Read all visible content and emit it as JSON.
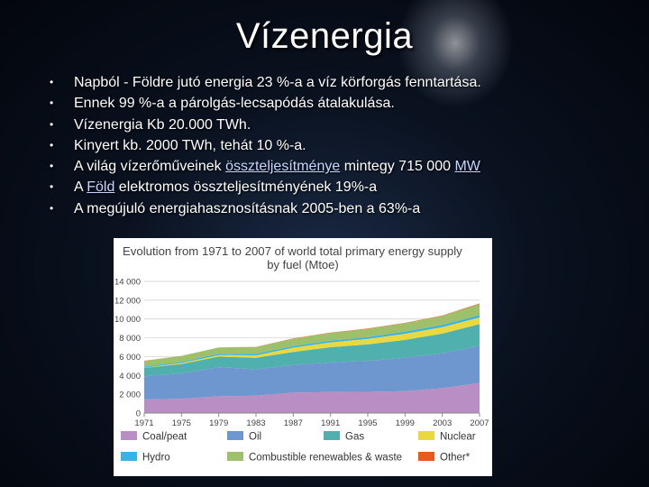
{
  "slide": {
    "title": "Vízenergia",
    "bullet_glyph": "•",
    "bullets": [
      {
        "text": "Napból - Földre jutó energia 23 %-a a víz körforgás fenntartása."
      },
      {
        "text": "Ennek 99 %-a a párolgás-lecsapódás átalakulása."
      },
      {
        "text": "Vízenergia Kb 20.000 TWh."
      },
      {
        "text": "Kinyert kb. 2000 TWh, tehát 10 %-a."
      },
      {
        "pre": "A világ vízerőműveinek ",
        "link1": "összteljesítménye",
        "mid": " mintegy 715 000 ",
        "link2": "MW"
      },
      {
        "pre": "A ",
        "link1": "Föld",
        "post": " elektromos összteljesítményének 19%-a"
      },
      {
        "text": "A megújuló energiahasznosításnak 2005-ben a 63%-a"
      }
    ]
  },
  "chart_data": {
    "type": "area",
    "stacked": true,
    "title": "Evolution from 1971 to 2007 of world total primary energy supply",
    "subtitle": "by fuel (Mtoe)",
    "x": [
      1971,
      1975,
      1979,
      1983,
      1987,
      1991,
      1995,
      1999,
      2003,
      2007
    ],
    "xticks": [
      "1971",
      "1975",
      "1979",
      "1983",
      "1987",
      "1991",
      "1995",
      "1999",
      "2003",
      "2007"
    ],
    "ylim": [
      0,
      14000
    ],
    "yticks": [
      "0",
      "2 000",
      "4 000",
      "6 000",
      "8 000",
      "10 000",
      "12 000",
      "14 000"
    ],
    "grid": true,
    "legend_position": "bottom",
    "series": [
      {
        "name": "Coal/peat",
        "color": "#b88ec4",
        "values": [
          1450,
          1520,
          1780,
          1850,
          2170,
          2230,
          2250,
          2330,
          2650,
          3200
        ]
      },
      {
        "name": "Oil",
        "color": "#6f97cf",
        "values": [
          2450,
          2700,
          3100,
          2800,
          2950,
          3150,
          3300,
          3550,
          3700,
          3950
        ]
      },
      {
        "name": "Gas",
        "color": "#4fb0ad",
        "values": [
          900,
          1000,
          1120,
          1220,
          1380,
          1620,
          1750,
          1900,
          2100,
          2300
        ]
      },
      {
        "name": "Nuclear",
        "color": "#ead93e",
        "values": [
          30,
          100,
          170,
          270,
          450,
          520,
          580,
          650,
          690,
          710
        ]
      },
      {
        "name": "Hydro",
        "color": "#39b2e4",
        "values": [
          110,
          120,
          140,
          160,
          170,
          180,
          200,
          220,
          230,
          250
        ]
      },
      {
        "name": "Combustible renewables & waste",
        "color": "#9fc06a",
        "values": [
          610,
          630,
          660,
          720,
          780,
          820,
          870,
          900,
          950,
          1180
        ]
      },
      {
        "name": "Other*",
        "color": "#e8591e",
        "values": [
          10,
          10,
          10,
          20,
          30,
          30,
          40,
          40,
          50,
          60
        ]
      }
    ]
  }
}
